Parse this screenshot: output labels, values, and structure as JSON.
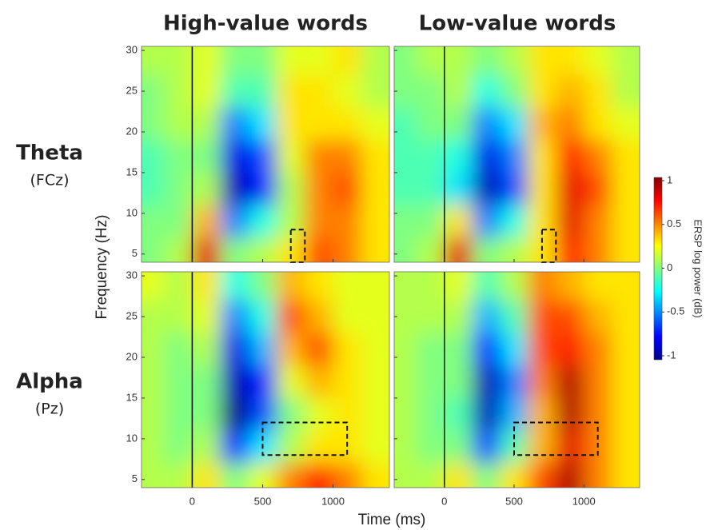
{
  "chart_data": {
    "type": "heatmap",
    "columns": [
      "High-value words",
      "Low-value words"
    ],
    "rows": [
      {
        "title": "Theta",
        "site": "(FCz)"
      },
      {
        "title": "Alpha",
        "site": "(Pz)"
      }
    ],
    "xlabel": "Time (ms)",
    "ylabel": "Frequency (Hz)",
    "xlim": [
      -360,
      1400
    ],
    "ylim": [
      4,
      30.5
    ],
    "xticks": [
      0,
      500,
      1000
    ],
    "yticks": [
      5,
      10,
      15,
      20,
      25,
      30
    ],
    "onset": 0,
    "x": [
      -300,
      -100,
      100,
      300,
      500,
      700,
      900,
      1100,
      1300
    ],
    "y": [
      29,
      25,
      21,
      17,
      13,
      9,
      5
    ],
    "colorbar": {
      "label": "ERSP log power (dB)",
      "lim": [
        -1,
        1
      ],
      "ticks": [
        1,
        0.5,
        0,
        -0.5,
        -1
      ]
    },
    "panels": [
      {
        "box": {
          "x": [
            700,
            800
          ],
          "y": [
            4,
            8
          ]
        },
        "values": [
          [
            0.1,
            0.1,
            0.2,
            0,
            0,
            0.2,
            0.2,
            0.3,
            0.1
          ],
          [
            0,
            0.1,
            0.2,
            -0.1,
            -0.1,
            0.3,
            0.3,
            0.2,
            0.1
          ],
          [
            0,
            0.1,
            0.1,
            -0.5,
            -0.3,
            0.3,
            0.3,
            0.3,
            0.2
          ],
          [
            -0.1,
            0,
            0,
            -0.8,
            -0.6,
            0.2,
            0.5,
            0.5,
            0.3
          ],
          [
            -0.1,
            0,
            0.1,
            -0.9,
            -0.7,
            0.1,
            0.5,
            0.6,
            0.3
          ],
          [
            0,
            0,
            0.4,
            -0.5,
            -0.2,
            0.1,
            0.5,
            0.5,
            0.3
          ],
          [
            0,
            0.1,
            0.8,
            0,
            0.1,
            0.3,
            0.6,
            0.5,
            0.3
          ]
        ]
      },
      {
        "box": {
          "x": [
            700,
            800
          ],
          "y": [
            4,
            8
          ]
        },
        "values": [
          [
            0,
            0.1,
            0.1,
            0,
            0.1,
            0.3,
            0.3,
            0.2,
            0.1
          ],
          [
            0,
            0,
            0.1,
            -0.2,
            0,
            0.3,
            0.4,
            0.3,
            0.1
          ],
          [
            -0.1,
            0,
            0,
            -0.5,
            -0.3,
            0.4,
            0.5,
            0.3,
            0.2
          ],
          [
            -0.1,
            -0.1,
            -0.2,
            -0.8,
            -0.5,
            0.3,
            0.7,
            0.5,
            0.3
          ],
          [
            -0.1,
            -0.1,
            -0.3,
            -0.9,
            -0.6,
            0.3,
            0.8,
            0.6,
            0.3
          ],
          [
            0,
            0,
            0.3,
            -0.5,
            -0.2,
            0.3,
            0.8,
            0.5,
            0.3
          ],
          [
            0,
            0.1,
            0.8,
            0,
            0.1,
            0.3,
            0.7,
            0.5,
            0.3
          ]
        ]
      },
      {
        "box": {
          "x": [
            500,
            1100
          ],
          "y": [
            8,
            12
          ]
        },
        "values": [
          [
            0.2,
            0.1,
            0.3,
            -0.2,
            0,
            0.4,
            0.3,
            0.2,
            0.2
          ],
          [
            0.1,
            0.1,
            0.2,
            -0.5,
            -0.2,
            0.6,
            0.4,
            0.2,
            0.2
          ],
          [
            0.1,
            0,
            0.1,
            -0.8,
            -0.4,
            0.4,
            0.6,
            0.3,
            0.2
          ],
          [
            0.1,
            0,
            0,
            -0.9,
            -0.7,
            0.2,
            0.4,
            0.3,
            0.2
          ],
          [
            0.1,
            0,
            0,
            -1,
            -0.6,
            0,
            0.2,
            0.3,
            0.2
          ],
          [
            0.1,
            0,
            0.1,
            -0.7,
            -0.3,
            0.1,
            0.3,
            0.3,
            0.2
          ],
          [
            0.1,
            0.1,
            0.3,
            0,
            0.2,
            0.5,
            0.7,
            0.5,
            0.3
          ]
        ]
      },
      {
        "box": {
          "x": [
            500,
            1100
          ],
          "y": [
            8,
            12
          ]
        },
        "values": [
          [
            0.1,
            0.1,
            0.2,
            -0.1,
            0.1,
            0.5,
            0.4,
            0.3,
            0.3
          ],
          [
            0.1,
            0.1,
            0.1,
            -0.4,
            -0.1,
            0.6,
            0.6,
            0.4,
            0.3
          ],
          [
            0.1,
            0,
            0,
            -0.7,
            -0.3,
            0.6,
            0.7,
            0.5,
            0.3
          ],
          [
            0.1,
            0,
            0,
            -0.9,
            -0.5,
            0.5,
            0.9,
            0.5,
            0.3
          ],
          [
            0.1,
            0,
            -0.1,
            -0.9,
            -0.4,
            0.4,
            0.9,
            0.5,
            0.3
          ],
          [
            0.1,
            0,
            0,
            -0.6,
            -0.1,
            0.4,
            0.8,
            0.5,
            0.3
          ],
          [
            0.1,
            0.1,
            0.3,
            0,
            0.3,
            0.6,
            0.9,
            0.5,
            0.3
          ]
        ]
      }
    ]
  }
}
